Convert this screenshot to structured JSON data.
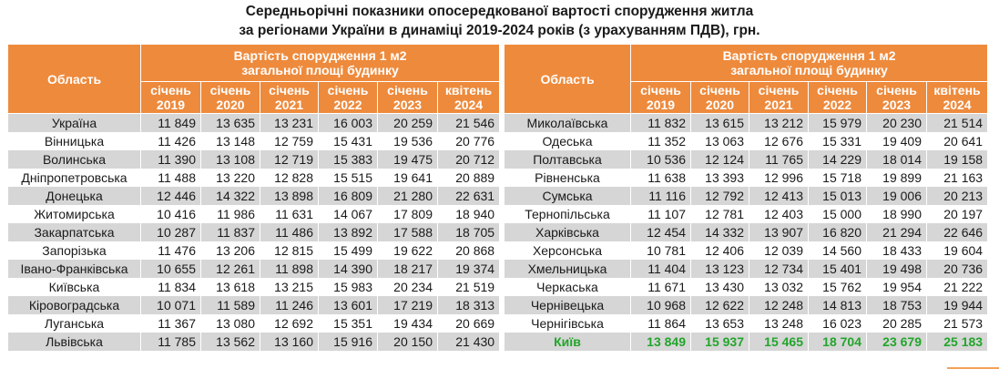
{
  "title_line1": "Середньорічні показники опосередкованої вартості спорудження житла",
  "title_line2": "за регіонами України в динаміці 2019-2024 років (з урахуванням ПДВ), грн.",
  "header": {
    "region": "Область",
    "group_line1": "Вартість спорудження 1 м2",
    "group_line2": "загальної площі будинку",
    "years": [
      {
        "month": "січень",
        "year": "2019"
      },
      {
        "month": "січень",
        "year": "2020"
      },
      {
        "month": "січень",
        "year": "2021"
      },
      {
        "month": "січень",
        "year": "2022"
      },
      {
        "month": "січень",
        "year": "2023"
      },
      {
        "month": "квітень",
        "year": "2024"
      }
    ]
  },
  "left_rows": [
    {
      "region": "Україна",
      "v": [
        "11 849",
        "13 635",
        "13 231",
        "16 003",
        "20 259",
        "21 546"
      ]
    },
    {
      "region": "Вінницька",
      "v": [
        "11 426",
        "13 148",
        "12 759",
        "15 431",
        "19 536",
        "20 776"
      ]
    },
    {
      "region": "Волинська",
      "v": [
        "11 390",
        "13 108",
        "12 719",
        "15 383",
        "19 475",
        "20 712"
      ]
    },
    {
      "region": "Дніпропетровська",
      "v": [
        "11 488",
        "13 220",
        "12 828",
        "15 515",
        "19 641",
        "20 889"
      ]
    },
    {
      "region": "Донецька",
      "v": [
        "12 446",
        "14 322",
        "13 898",
        "16 809",
        "21 280",
        "22 631"
      ]
    },
    {
      "region": "Житомирська",
      "v": [
        "10 416",
        "11 986",
        "11 631",
        "14 067",
        "17 809",
        "18 940"
      ]
    },
    {
      "region": "Закарпатська",
      "v": [
        "10 287",
        "11 837",
        "11 486",
        "13 892",
        "17 588",
        "18 705"
      ]
    },
    {
      "region": "Запорізька",
      "v": [
        "11 476",
        "13 206",
        "12 815",
        "15 499",
        "19 622",
        "20 868"
      ]
    },
    {
      "region": "Івано-Франківська",
      "v": [
        "10 655",
        "12 261",
        "11 898",
        "14 390",
        "18 217",
        "19 374"
      ]
    },
    {
      "region": "Київська",
      "v": [
        "11 834",
        "13 618",
        "13 215",
        "15 983",
        "20 234",
        "21 519"
      ]
    },
    {
      "region": "Кіровоградська",
      "v": [
        "10 071",
        "11 589",
        "11 246",
        "13 601",
        "17 219",
        "18 313"
      ]
    },
    {
      "region": "Луганська",
      "v": [
        "11 367",
        "13 080",
        "12 692",
        "15 351",
        "19 434",
        "20 669"
      ]
    },
    {
      "region": "Львівська",
      "v": [
        "11 785",
        "13 562",
        "13 160",
        "15 916",
        "20 150",
        "21 430"
      ]
    }
  ],
  "right_rows": [
    {
      "region": "Миколаївська",
      "v": [
        "11 832",
        "13 615",
        "13 212",
        "15 979",
        "20 230",
        "21 514"
      ]
    },
    {
      "region": "Одеська",
      "v": [
        "11 352",
        "13 063",
        "12 676",
        "15 331",
        "19 409",
        "20 641"
      ]
    },
    {
      "region": "Полтавська",
      "v": [
        "10 536",
        "12 124",
        "11 765",
        "14 229",
        "18 014",
        "19 158"
      ]
    },
    {
      "region": "Рівненська",
      "v": [
        "11 638",
        "13 393",
        "12 996",
        "15 718",
        "19 899",
        "21 163"
      ]
    },
    {
      "region": "Сумська",
      "v": [
        "11 116",
        "12 792",
        "12 413",
        "15 013",
        "19 006",
        "20 213"
      ]
    },
    {
      "region": "Тернопільська",
      "v": [
        "11 107",
        "12 781",
        "12 403",
        "15 000",
        "18 990",
        "20 197"
      ]
    },
    {
      "region": "Харківська",
      "v": [
        "12 454",
        "14 332",
        "13 907",
        "16 820",
        "21 294",
        "22 646"
      ]
    },
    {
      "region": "Херсонська",
      "v": [
        "10 781",
        "12 406",
        "12 039",
        "14 560",
        "18 433",
        "19 604"
      ]
    },
    {
      "region": "Хмельницька",
      "v": [
        "11 404",
        "13 123",
        "12 734",
        "15 401",
        "19 498",
        "20 736"
      ]
    },
    {
      "region": "Черкаська",
      "v": [
        "11 671",
        "13 430",
        "13 032",
        "15 762",
        "19 954",
        "21 222"
      ]
    },
    {
      "region": "Чернівецька",
      "v": [
        "10 968",
        "12 622",
        "12 248",
        "14 813",
        "18 753",
        "19 944"
      ]
    },
    {
      "region": "Чернігівська",
      "v": [
        "11 864",
        "13 653",
        "13 248",
        "16 023",
        "20 285",
        "21 573"
      ]
    },
    {
      "region": "Київ",
      "v": [
        "13 849",
        "15 937",
        "15 465",
        "18 704",
        "23 679",
        "25 183"
      ]
    }
  ],
  "colors": {
    "header_bg": "#ee8a3c",
    "row_shade": "#d6d6d6",
    "kyiv_text": "#22a52b"
  }
}
